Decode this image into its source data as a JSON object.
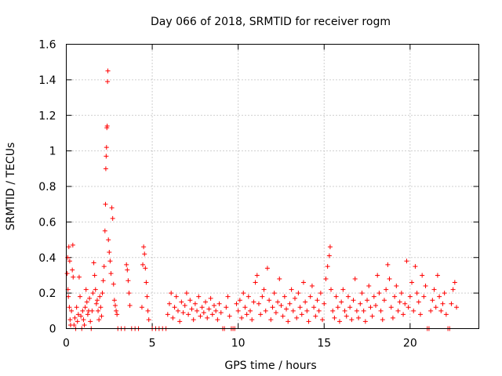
{
  "chart_data": {
    "type": "scatter",
    "title": "Day 066 of 2018, SRMTID for receiver rogm",
    "xlabel": "GPS time / hours",
    "ylabel": "SRMTID / TECUs",
    "xlim": [
      0,
      24
    ],
    "ylim": [
      0,
      1.6
    ],
    "xticks": [
      0,
      5,
      10,
      15,
      20
    ],
    "xtick_labels": [
      "0",
      "5",
      "10",
      "15",
      "20"
    ],
    "yticks": [
      0,
      0.2,
      0.4,
      0.6,
      0.8,
      1.0,
      1.2,
      1.4,
      1.6
    ],
    "ytick_labels": [
      "0",
      "0.2",
      "0.4",
      "0.6",
      "0.8",
      "1",
      "1.2",
      "1.4",
      "1.6"
    ],
    "grid": true,
    "legend": "none",
    "marker": "+",
    "color": "#ff0000",
    "series": [
      {
        "points": [
          [
            0.05,
            0.31
          ],
          [
            0.08,
            0.4
          ],
          [
            0.1,
            0.22
          ],
          [
            0.12,
            0.18
          ],
          [
            0.15,
            0.46
          ],
          [
            0.18,
            0.12
          ],
          [
            0.2,
            0.38
          ],
          [
            0.22,
            0.05
          ],
          [
            0.25,
            0.02
          ],
          [
            0.3,
            0.1
          ],
          [
            0.35,
            0.33
          ],
          [
            0.38,
            0.47
          ],
          [
            0.4,
            0.29
          ],
          [
            0.45,
            0.02
          ],
          [
            0.5,
            0.06
          ],
          [
            0.55,
            0.0
          ],
          [
            0.6,
            0.12
          ],
          [
            0.65,
            0.04
          ],
          [
            0.7,
            0.08
          ],
          [
            0.75,
            0.29
          ],
          [
            0.8,
            0.18
          ],
          [
            0.85,
            0.07
          ],
          [
            0.9,
            0.0
          ],
          [
            0.95,
            0.1
          ],
          [
            1.0,
            0.05
          ],
          [
            1.05,
            0.02
          ],
          [
            1.1,
            0.12
          ],
          [
            1.15,
            0.22
          ],
          [
            1.2,
            0.15
          ],
          [
            1.25,
            0.08
          ],
          [
            1.3,
            0.1
          ],
          [
            1.35,
            0.17
          ],
          [
            1.4,
            0.04
          ],
          [
            1.45,
            0.0
          ],
          [
            1.5,
            0.1
          ],
          [
            1.55,
            0.2
          ],
          [
            1.6,
            0.37
          ],
          [
            1.65,
            0.3
          ],
          [
            1.7,
            0.22
          ],
          [
            1.75,
            0.14
          ],
          [
            1.8,
            0.16
          ],
          [
            1.85,
            0.1
          ],
          [
            1.9,
            0.05
          ],
          [
            1.95,
            0.18
          ],
          [
            2.0,
            0.12
          ],
          [
            2.05,
            0.07
          ],
          [
            2.1,
            0.2
          ],
          [
            2.15,
            0.27
          ],
          [
            2.2,
            0.35
          ],
          [
            2.25,
            0.55
          ],
          [
            2.28,
            0.7
          ],
          [
            2.3,
            0.9
          ],
          [
            2.32,
            0.97
          ],
          [
            2.34,
            1.02
          ],
          [
            2.36,
            1.13
          ],
          [
            2.38,
            1.14
          ],
          [
            2.4,
            1.39
          ],
          [
            2.42,
            1.45
          ],
          [
            2.45,
            0.5
          ],
          [
            2.5,
            0.43
          ],
          [
            2.55,
            0.38
          ],
          [
            2.6,
            0.31
          ],
          [
            2.65,
            0.68
          ],
          [
            2.7,
            0.62
          ],
          [
            2.75,
            0.25
          ],
          [
            2.8,
            0.16
          ],
          [
            2.85,
            0.13
          ],
          [
            2.9,
            0.1
          ],
          [
            2.95,
            0.08
          ],
          [
            3.0,
            0.0
          ],
          [
            3.2,
            0.0
          ],
          [
            3.4,
            0.0
          ],
          [
            3.5,
            0.36
          ],
          [
            3.55,
            0.33
          ],
          [
            3.6,
            0.27
          ],
          [
            3.65,
            0.2
          ],
          [
            3.7,
            0.13
          ],
          [
            3.8,
            0.0
          ],
          [
            4.0,
            0.0
          ],
          [
            4.2,
            0.0
          ],
          [
            4.4,
            0.12
          ],
          [
            4.45,
            0.36
          ],
          [
            4.5,
            0.46
          ],
          [
            4.55,
            0.42
          ],
          [
            4.6,
            0.34
          ],
          [
            4.65,
            0.26
          ],
          [
            4.7,
            0.18
          ],
          [
            4.75,
            0.1
          ],
          [
            4.8,
            0.05
          ],
          [
            5.0,
            0.0
          ],
          [
            5.2,
            0.0
          ],
          [
            5.4,
            0.0
          ],
          [
            5.6,
            0.0
          ],
          [
            5.8,
            0.0
          ],
          [
            5.9,
            0.08
          ],
          [
            6.0,
            0.14
          ],
          [
            6.1,
            0.2
          ],
          [
            6.2,
            0.06
          ],
          [
            6.3,
            0.12
          ],
          [
            6.4,
            0.18
          ],
          [
            6.5,
            0.1
          ],
          [
            6.6,
            0.04
          ],
          [
            6.7,
            0.15
          ],
          [
            6.8,
            0.09
          ],
          [
            6.9,
            0.13
          ],
          [
            7.0,
            0.2
          ],
          [
            7.1,
            0.08
          ],
          [
            7.2,
            0.16
          ],
          [
            7.3,
            0.11
          ],
          [
            7.4,
            0.05
          ],
          [
            7.5,
            0.14
          ],
          [
            7.6,
            0.1
          ],
          [
            7.7,
            0.18
          ],
          [
            7.8,
            0.07
          ],
          [
            7.9,
            0.12
          ],
          [
            8.0,
            0.09
          ],
          [
            8.1,
            0.15
          ],
          [
            8.2,
            0.06
          ],
          [
            8.3,
            0.11
          ],
          [
            8.4,
            0.17
          ],
          [
            8.5,
            0.08
          ],
          [
            8.6,
            0.13
          ],
          [
            8.7,
            0.1
          ],
          [
            8.8,
            0.05
          ],
          [
            8.9,
            0.14
          ],
          [
            9.0,
            0.09
          ],
          [
            9.1,
            0.0
          ],
          [
            9.2,
            0.0
          ],
          [
            9.3,
            0.12
          ],
          [
            9.4,
            0.18
          ],
          [
            9.5,
            0.07
          ],
          [
            9.6,
            0.0
          ],
          [
            9.7,
            0.0
          ],
          [
            9.8,
            0.0
          ],
          [
            9.9,
            0.14
          ],
          [
            10.0,
            0.1
          ],
          [
            10.1,
            0.16
          ],
          [
            10.2,
            0.06
          ],
          [
            10.3,
            0.2
          ],
          [
            10.4,
            0.12
          ],
          [
            10.5,
            0.08
          ],
          [
            10.6,
            0.18
          ],
          [
            10.7,
            0.1
          ],
          [
            10.8,
            0.05
          ],
          [
            10.9,
            0.15
          ],
          [
            11.0,
            0.26
          ],
          [
            11.1,
            0.3
          ],
          [
            11.2,
            0.14
          ],
          [
            11.3,
            0.08
          ],
          [
            11.4,
            0.18
          ],
          [
            11.5,
            0.22
          ],
          [
            11.6,
            0.1
          ],
          [
            11.7,
            0.34
          ],
          [
            11.8,
            0.16
          ],
          [
            11.9,
            0.05
          ],
          [
            12.0,
            0.12
          ],
          [
            12.1,
            0.2
          ],
          [
            12.2,
            0.09
          ],
          [
            12.3,
            0.15
          ],
          [
            12.4,
            0.28
          ],
          [
            12.5,
            0.13
          ],
          [
            12.6,
            0.07
          ],
          [
            12.7,
            0.18
          ],
          [
            12.8,
            0.11
          ],
          [
            12.9,
            0.04
          ],
          [
            13.0,
            0.14
          ],
          [
            13.1,
            0.22
          ],
          [
            13.2,
            0.1
          ],
          [
            13.3,
            0.17
          ],
          [
            13.4,
            0.06
          ],
          [
            13.5,
            0.2
          ],
          [
            13.6,
            0.12
          ],
          [
            13.7,
            0.08
          ],
          [
            13.8,
            0.26
          ],
          [
            13.9,
            0.15
          ],
          [
            14.0,
            0.1
          ],
          [
            14.1,
            0.04
          ],
          [
            14.2,
            0.18
          ],
          [
            14.3,
            0.24
          ],
          [
            14.4,
            0.12
          ],
          [
            14.5,
            0.07
          ],
          [
            14.6,
            0.16
          ],
          [
            14.7,
            0.1
          ],
          [
            14.8,
            0.2
          ],
          [
            14.9,
            0.05
          ],
          [
            15.0,
            0.14
          ],
          [
            15.1,
            0.28
          ],
          [
            15.2,
            0.35
          ],
          [
            15.3,
            0.41
          ],
          [
            15.35,
            0.46
          ],
          [
            15.4,
            0.22
          ],
          [
            15.5,
            0.1
          ],
          [
            15.6,
            0.06
          ],
          [
            15.7,
            0.18
          ],
          [
            15.8,
            0.12
          ],
          [
            15.9,
            0.04
          ],
          [
            16.0,
            0.15
          ],
          [
            16.1,
            0.22
          ],
          [
            16.2,
            0.1
          ],
          [
            16.3,
            0.07
          ],
          [
            16.4,
            0.18
          ],
          [
            16.5,
            0.12
          ],
          [
            16.6,
            0.05
          ],
          [
            16.7,
            0.16
          ],
          [
            16.8,
            0.28
          ],
          [
            16.9,
            0.1
          ],
          [
            17.0,
            0.06
          ],
          [
            17.1,
            0.14
          ],
          [
            17.2,
            0.2
          ],
          [
            17.3,
            0.1
          ],
          [
            17.4,
            0.04
          ],
          [
            17.5,
            0.16
          ],
          [
            17.6,
            0.24
          ],
          [
            17.7,
            0.12
          ],
          [
            17.8,
            0.07
          ],
          [
            17.9,
            0.18
          ],
          [
            18.0,
            0.13
          ],
          [
            18.1,
            0.3
          ],
          [
            18.2,
            0.2
          ],
          [
            18.3,
            0.1
          ],
          [
            18.4,
            0.05
          ],
          [
            18.5,
            0.16
          ],
          [
            18.6,
            0.22
          ],
          [
            18.7,
            0.36
          ],
          [
            18.8,
            0.28
          ],
          [
            18.9,
            0.12
          ],
          [
            19.0,
            0.06
          ],
          [
            19.1,
            0.18
          ],
          [
            19.2,
            0.24
          ],
          [
            19.3,
            0.1
          ],
          [
            19.4,
            0.15
          ],
          [
            19.5,
            0.2
          ],
          [
            19.6,
            0.08
          ],
          [
            19.7,
            0.14
          ],
          [
            19.8,
            0.38
          ],
          [
            19.9,
            0.12
          ],
          [
            20.0,
            0.18
          ],
          [
            20.1,
            0.26
          ],
          [
            20.2,
            0.1
          ],
          [
            20.3,
            0.35
          ],
          [
            20.4,
            0.2
          ],
          [
            20.5,
            0.15
          ],
          [
            20.6,
            0.08
          ],
          [
            20.7,
            0.3
          ],
          [
            20.8,
            0.18
          ],
          [
            20.9,
            0.24
          ],
          [
            21.0,
            0.0
          ],
          [
            21.1,
            0.0
          ],
          [
            21.2,
            0.1
          ],
          [
            21.3,
            0.16
          ],
          [
            21.4,
            0.22
          ],
          [
            21.5,
            0.12
          ],
          [
            21.6,
            0.3
          ],
          [
            21.7,
            0.18
          ],
          [
            21.8,
            0.1
          ],
          [
            21.9,
            0.14
          ],
          [
            22.0,
            0.2
          ],
          [
            22.1,
            0.08
          ],
          [
            22.2,
            0.0
          ],
          [
            22.3,
            0.0
          ],
          [
            22.4,
            0.14
          ],
          [
            22.5,
            0.22
          ],
          [
            22.6,
            0.26
          ],
          [
            22.7,
            0.12
          ]
        ]
      }
    ]
  }
}
